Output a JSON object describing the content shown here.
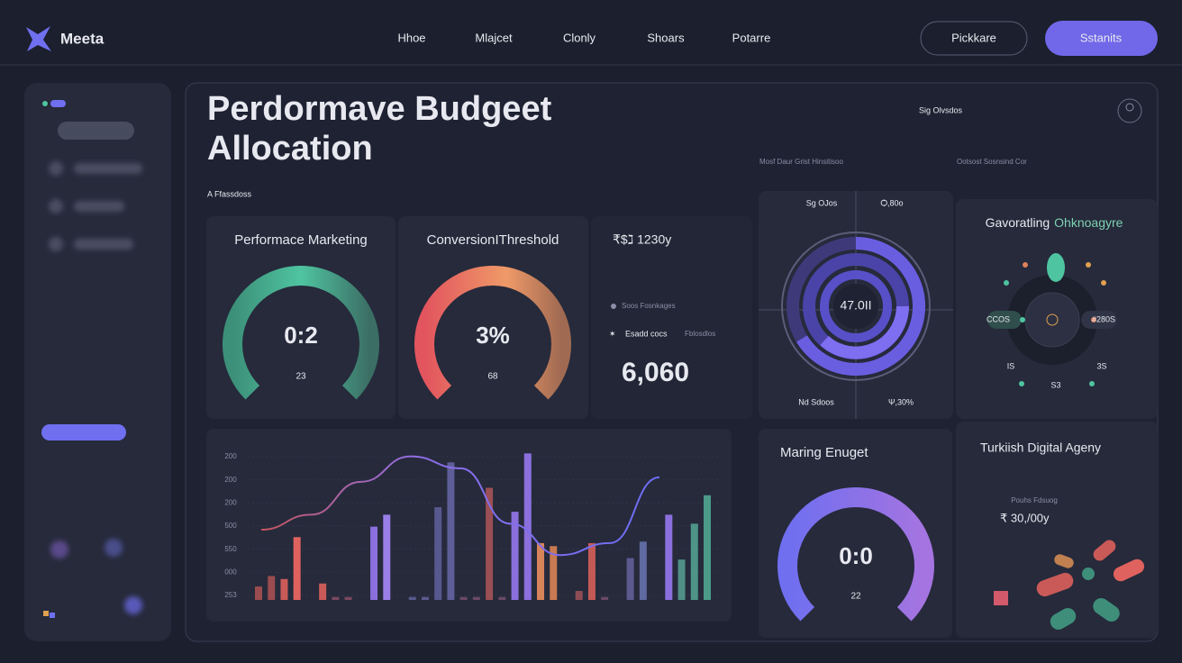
{
  "nav": {
    "brand": "Meeta",
    "links": [
      "Hhoe",
      "Mlajcet",
      "Clonly",
      "Shoars",
      "Potarre"
    ],
    "buttons": [
      "Pickkare",
      "Sstanits"
    ]
  },
  "header": {
    "title_lines": [
      "Perdormave Budgeet",
      "Allocation"
    ],
    "subtitle": "A Ffassdoss",
    "top_right": "Sig Olvsdos",
    "captions": [
      "Mosf Daur Grist Hinsitisoo",
      "Ootsost Sosnsind Cor"
    ]
  },
  "gauges": [
    {
      "title": "Performace Marketing",
      "value": "0:2",
      "sub": "23"
    },
    {
      "title": "ConversionIThreshold",
      "value": "3%",
      "sub": "68"
    },
    {
      "title": "Maring Enuget",
      "value": "0:0",
      "sub": "22"
    }
  ],
  "stat": {
    "heading": "₹$ℷ 1230y",
    "legend": [
      "Soos Fosnkages",
      "Esadd cocs",
      "Fblosdlos"
    ],
    "value": "6,060"
  },
  "radial": {
    "labels": [
      "Sg OJos",
      "Ѻ,80o",
      "Nd Sdoos",
      "Ψ,30%"
    ],
    "center": "47.0II"
  },
  "network": {
    "title": "Gavoratling",
    "title_accent": "Ohknoagyre",
    "labels": [
      "CCOS",
      "#280S",
      "IS",
      "3S",
      "S3"
    ]
  },
  "agency": {
    "title": "Turkiish Digital Ageny",
    "caption": "Pouhs Fdsuog",
    "amount": "₹ 30,/00y"
  },
  "bar_chart": {
    "y_labels": [
      "200",
      "200",
      "200",
      "500",
      "550",
      "000",
      "253"
    ],
    "ylim": [
      0,
      100
    ],
    "values": [
      9,
      16,
      14,
      42,
      null,
      11,
      2,
      2,
      null,
      49,
      57,
      null,
      2,
      2,
      62,
      92,
      2,
      2,
      75,
      2,
      59,
      98,
      38,
      36,
      null,
      6,
      38,
      2,
      null,
      28,
      39,
      null,
      57,
      27,
      51,
      70
    ],
    "colors": [
      "#9a4c4e",
      "#9a4c4e",
      "#c95a58",
      "#e0625f",
      null,
      "#c95a58",
      "#7a4860",
      "#7a4860",
      null,
      "#8b6fdc",
      "#9a7ee8",
      null,
      "#5a5a8e",
      "#5a5a8e",
      "#56588e",
      "#5e5f98",
      "#6a4a66",
      "#6a4a66",
      "#9a4f55",
      "#6a4a66",
      "#8b6fdc",
      "#8b6fdc",
      "#d7845a",
      "#c97a52",
      null,
      "#8e4d55",
      "#c45a55",
      "#6a4a66",
      null,
      "#5a5a8e",
      "#5e6aa0",
      null,
      "#8b6fdc",
      "#4f8f86",
      "#4e9487",
      "#4c9a88"
    ],
    "line_values": [
      47,
      57,
      79,
      96,
      88,
      51,
      30,
      38,
      82
    ]
  }
}
